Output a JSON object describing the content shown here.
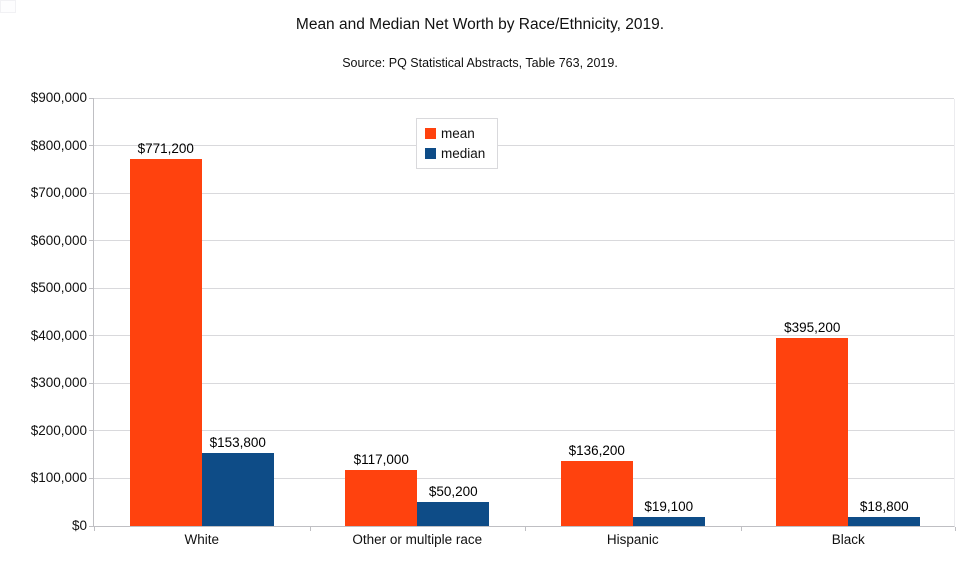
{
  "page": {
    "title": "Mean and Median Net Worth by Race/Ethnicity, 2019.",
    "subtitle": "Source: PQ Statistical Abstracts, Table 763, 2019."
  },
  "legend": {
    "items": [
      {
        "label": "mean",
        "color": "#ff420e"
      },
      {
        "label": "median",
        "color": "#0e4c87"
      }
    ]
  },
  "chart_data": {
    "type": "bar",
    "title": "Mean and Median Net Worth by Race/Ethnicity, 2019.",
    "subtitle": "Source: PQ Statistical Abstracts, Table 763, 2019.",
    "categories": [
      "White",
      "Other or multiple race",
      "Hispanic",
      "Black"
    ],
    "series": [
      {
        "name": "mean",
        "color": "#ff420e",
        "values": [
          771200,
          117000,
          136200,
          395200
        ],
        "labels": [
          "$771,200",
          "$117,000",
          "$136,200",
          "$395,200"
        ]
      },
      {
        "name": "median",
        "color": "#0e4c87",
        "values": [
          153800,
          50200,
          19100,
          18800
        ],
        "labels": [
          "$153,800",
          "$50,200",
          "$19,100",
          "$18,800"
        ]
      }
    ],
    "xlabel": "",
    "ylabel": "",
    "y_axis": {
      "min": 0,
      "max": 900000,
      "step": 100000,
      "tick_values": [
        0,
        100000,
        200000,
        300000,
        400000,
        500000,
        600000,
        700000,
        800000,
        900000
      ],
      "tick_labels": [
        "$0",
        "$100,000",
        "$200,000",
        "$300,000",
        "$400,000",
        "$500,000",
        "$600,000",
        "$700,000",
        "$800,000",
        "$900,000"
      ]
    },
    "grid": true,
    "legend_position": "inside-top-center"
  }
}
